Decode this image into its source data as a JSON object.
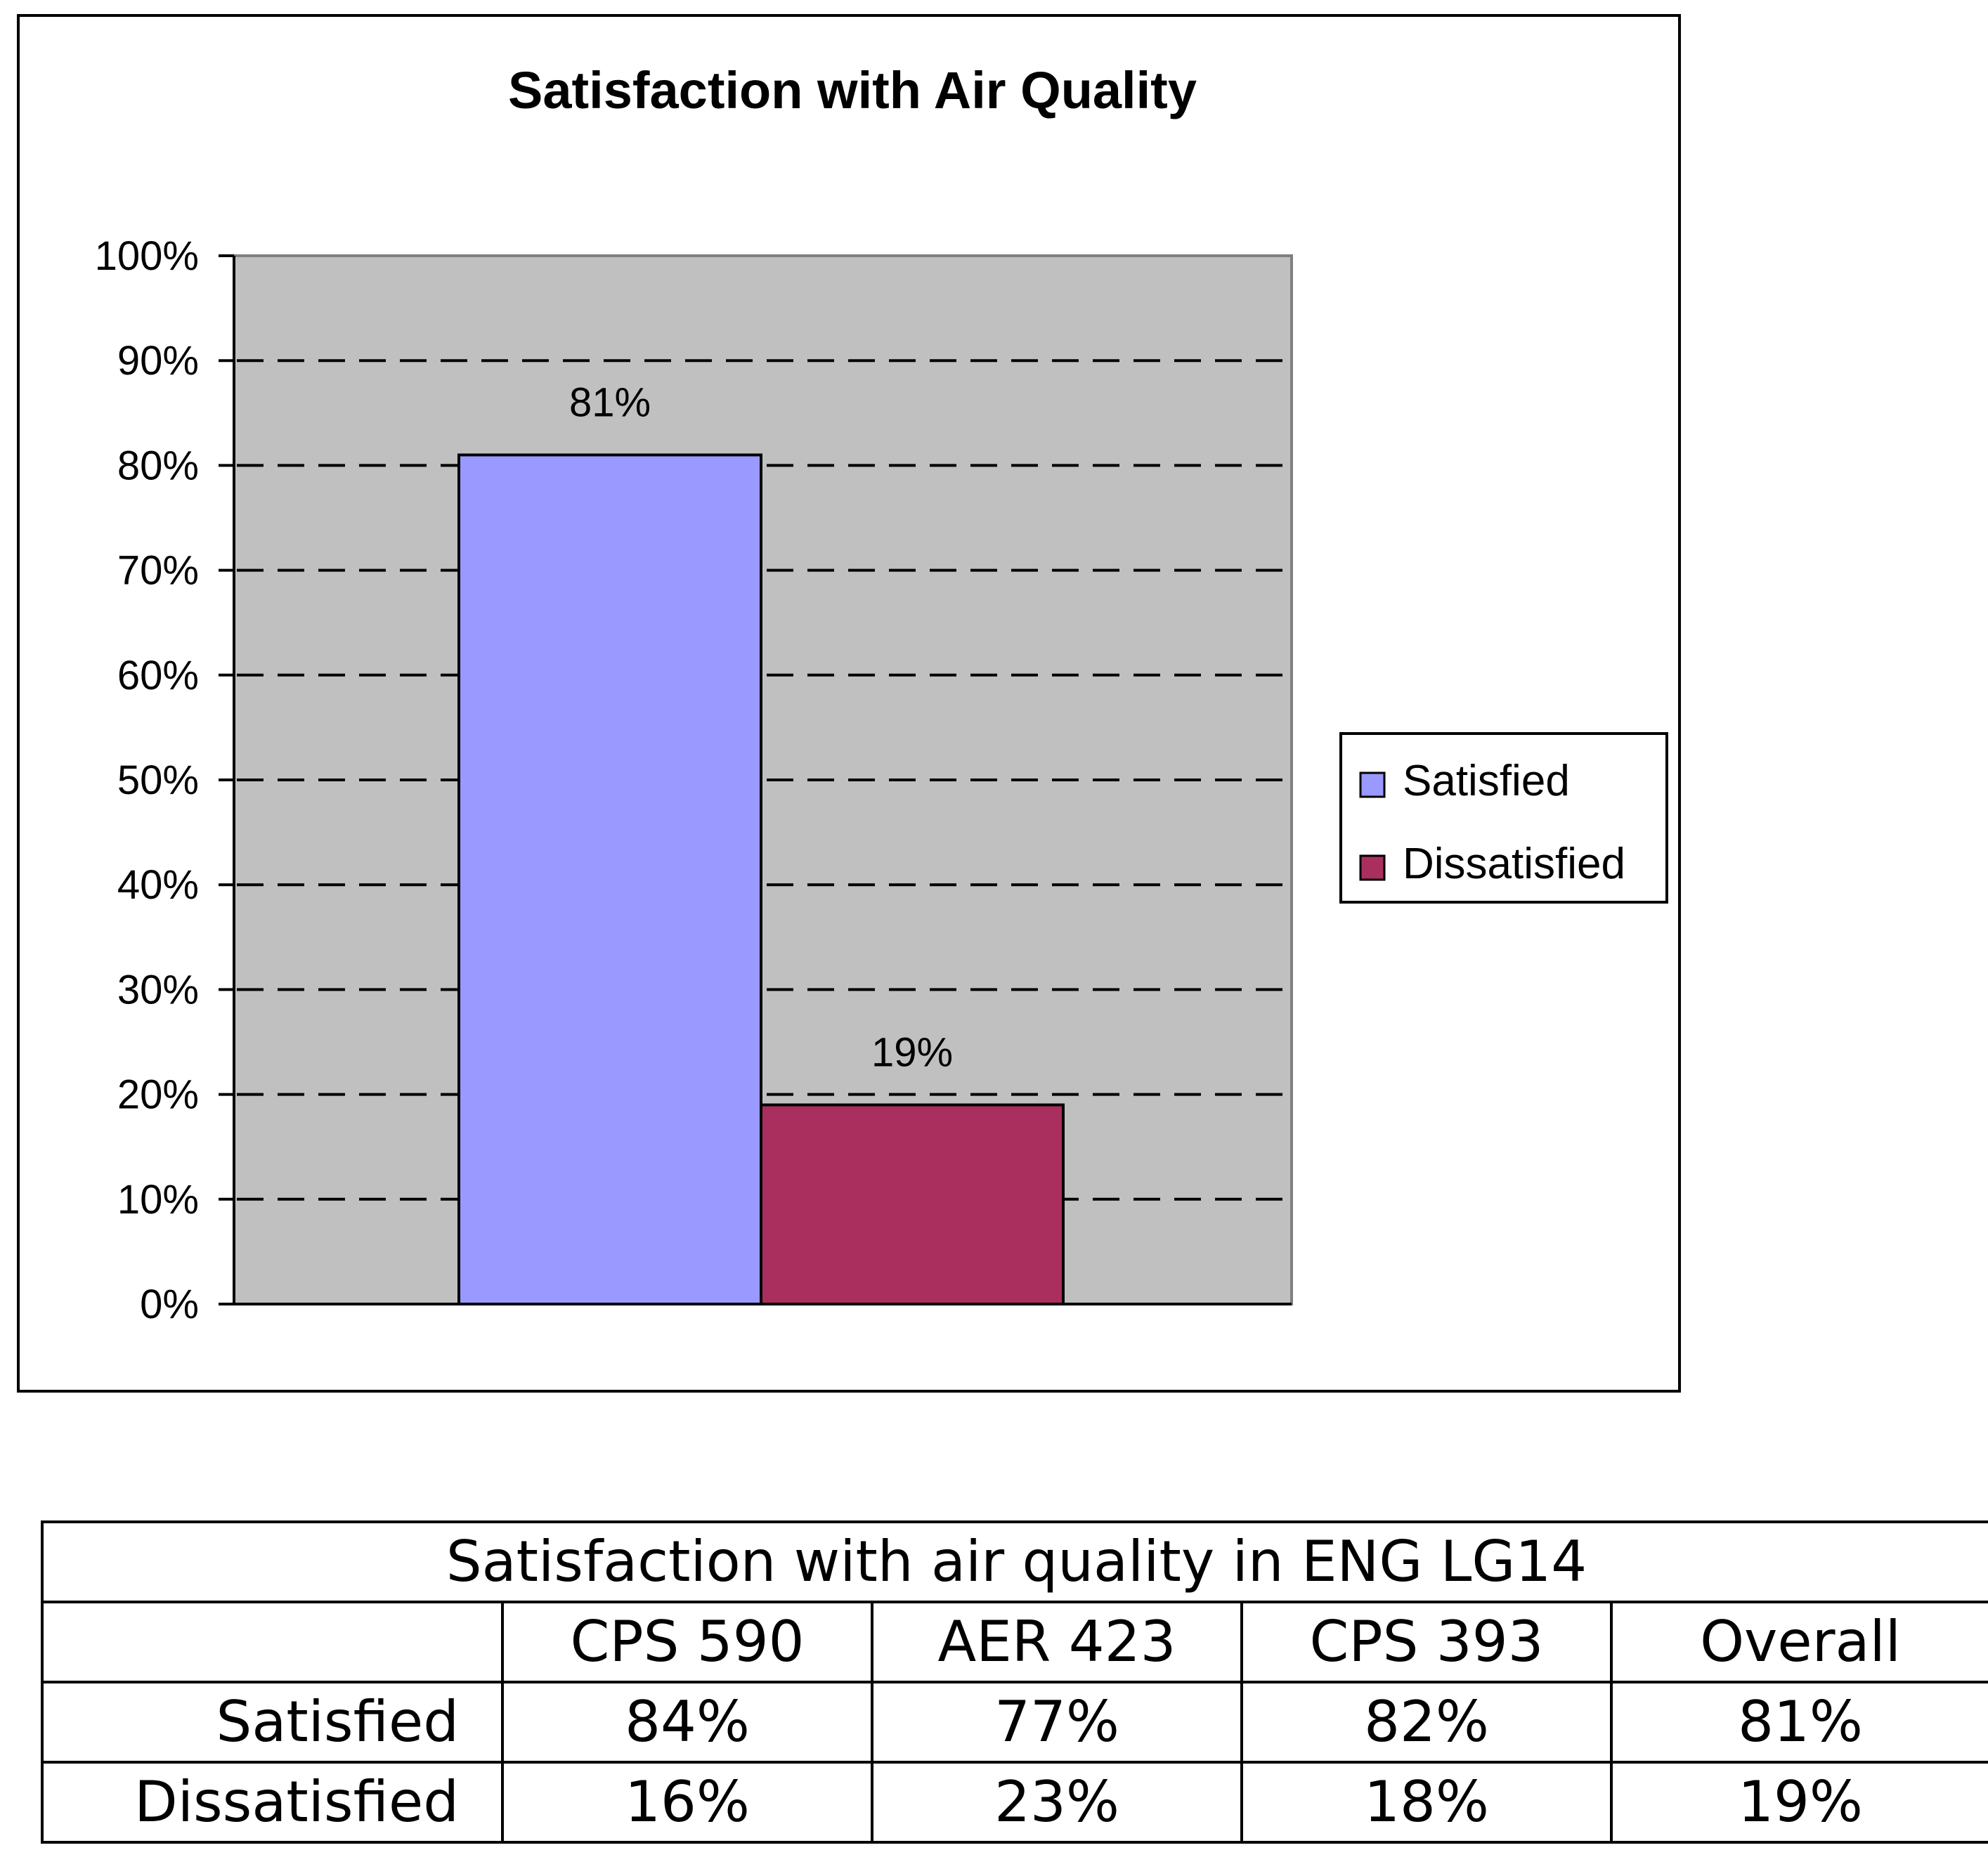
{
  "chart_data": {
    "type": "bar",
    "title": "Satisfaction with Air Quality",
    "categories": [
      ""
    ],
    "series": [
      {
        "name": "Satisfied",
        "values": [
          81
        ],
        "color": "#9999ff",
        "label": "81%"
      },
      {
        "name": "Dissatisfied",
        "values": [
          19
        ],
        "color": "#aa2f5e",
        "label": "19%"
      }
    ],
    "ylim": [
      0,
      100
    ],
    "yticks": [
      "0%",
      "10%",
      "20%",
      "30%",
      "40%",
      "50%",
      "60%",
      "70%",
      "80%",
      "90%",
      "100%"
    ],
    "xlabel": "",
    "ylabel": "",
    "grid": "dashed horizontal",
    "plot_background": "#c0c0c0",
    "legend_placement": "right"
  },
  "table": {
    "caption": "Satisfaction with air quality in ENG LG14",
    "columns": [
      "",
      "CPS 590",
      "AER 423",
      "CPS 393",
      "Overall"
    ],
    "rows": [
      {
        "label": "Satisfied",
        "cells": [
          "84%",
          "77%",
          "82%",
          "81%"
        ]
      },
      {
        "label": "Dissatisfied",
        "cells": [
          "16%",
          "23%",
          "18%",
          "19%"
        ]
      }
    ]
  }
}
